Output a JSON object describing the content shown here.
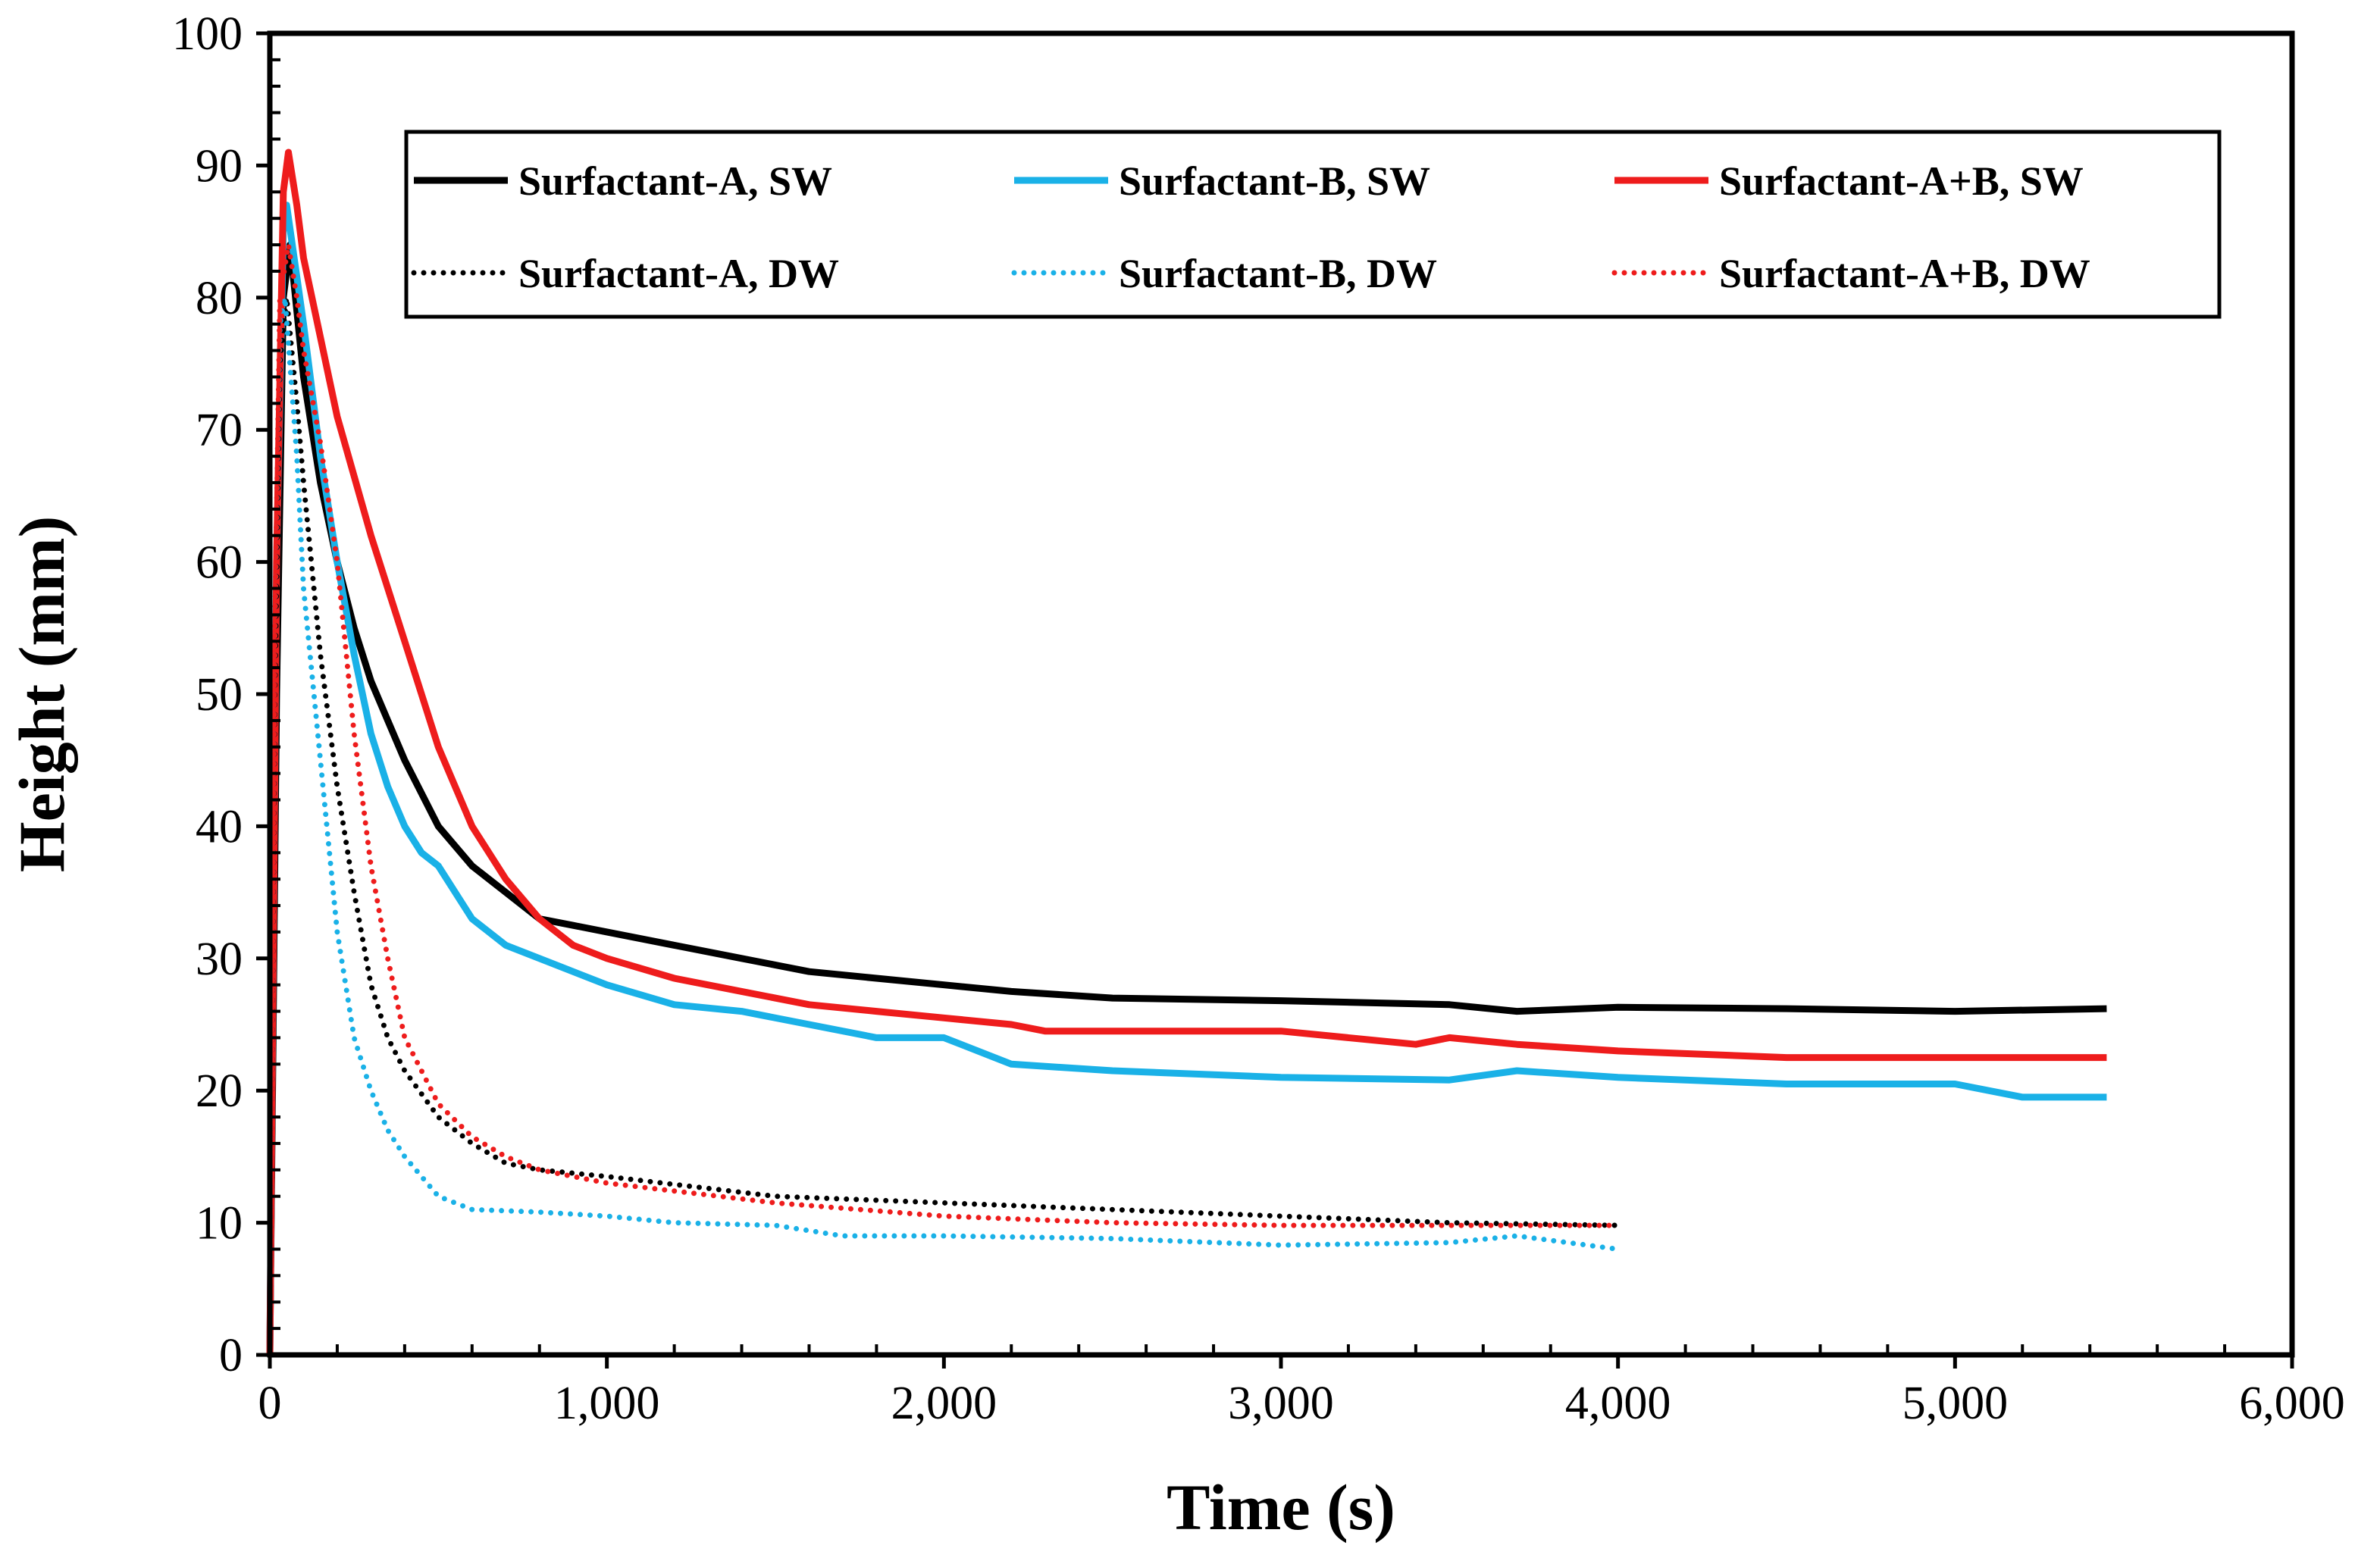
{
  "chart_data": {
    "type": "line",
    "title": "",
    "xlabel": "Time (s)",
    "ylabel": "Height (mm)",
    "xlim": [
      0,
      6000
    ],
    "ylim": [
      0,
      100
    ],
    "x_ticks": [
      0,
      1000,
      2000,
      3000,
      4000,
      5000,
      6000
    ],
    "x_tick_labels": [
      "0",
      "1,000",
      "2,000",
      "3,000",
      "4,000",
      "5,000",
      "6,000"
    ],
    "y_ticks": [
      0,
      10,
      20,
      30,
      40,
      50,
      60,
      70,
      80,
      90,
      100
    ],
    "y_tick_labels": [
      "0",
      "10",
      "20",
      "30",
      "40",
      "50",
      "60",
      "70",
      "80",
      "90",
      "100"
    ],
    "grid": false,
    "legend_position": "top",
    "series": [
      {
        "name": "Surfactant-A, SW",
        "color": "#000000",
        "style": "solid",
        "x": [
          0,
          20,
          40,
          60,
          100,
          150,
          200,
          250,
          300,
          350,
          400,
          500,
          600,
          700,
          800,
          900,
          1000,
          1200,
          1400,
          1600,
          1800,
          2000,
          2200,
          2500,
          3000,
          3500,
          3700,
          4000,
          4500,
          5000,
          5450
        ],
        "y": [
          0,
          50,
          80,
          84,
          74,
          66,
          60,
          55,
          51,
          48,
          45,
          40,
          37,
          35,
          33,
          32.5,
          32,
          31,
          30,
          29,
          28.5,
          28,
          27.5,
          27,
          26.8,
          26.5,
          26,
          26.3,
          26.2,
          26,
          26.2
        ]
      },
      {
        "name": "Surfactant-B, SW",
        "color": "#1ab1e7",
        "style": "solid",
        "x": [
          0,
          20,
          40,
          50,
          100,
          150,
          200,
          250,
          300,
          350,
          400,
          450,
          500,
          600,
          700,
          800,
          1000,
          1200,
          1400,
          1600,
          1800,
          2000,
          2200,
          2500,
          3000,
          3500,
          3700,
          4000,
          4500,
          5000,
          5200,
          5450
        ],
        "y": [
          0,
          60,
          85,
          87,
          78,
          68,
          60,
          53,
          47,
          43,
          40,
          38,
          37,
          33,
          31,
          30,
          28,
          26.5,
          26,
          25,
          24,
          24,
          22,
          21.5,
          21,
          20.8,
          21.5,
          21,
          20.5,
          20.5,
          19.5,
          19.5
        ]
      },
      {
        "name": "Surfactant-A+B, SW",
        "color": "#ee1c1c",
        "style": "solid",
        "x": [
          0,
          20,
          40,
          55,
          80,
          100,
          150,
          200,
          300,
          400,
          500,
          600,
          700,
          800,
          900,
          1000,
          1200,
          1400,
          1600,
          1800,
          2000,
          2200,
          2300,
          2500,
          3000,
          3400,
          3500,
          3700,
          4000,
          4500,
          5000,
          5450
        ],
        "y": [
          0,
          60,
          88,
          91,
          87,
          83,
          77,
          71,
          62,
          54,
          46,
          40,
          36,
          33,
          31,
          30,
          28.5,
          27.5,
          26.5,
          26,
          25.5,
          25,
          24.5,
          24.5,
          24.5,
          23.5,
          24,
          23.5,
          23,
          22.5,
          22.5,
          22.5
        ]
      },
      {
        "name": "Surfactant-A, DW",
        "color": "#000000",
        "style": "dotted",
        "x": [
          0,
          15,
          30,
          50,
          80,
          100,
          150,
          200,
          250,
          300,
          350,
          400,
          500,
          600,
          700,
          800,
          1000,
          1500,
          2000,
          2500,
          3000,
          3500,
          4000
        ],
        "y": [
          0,
          50,
          75,
          80,
          72,
          66,
          53,
          43,
          35,
          28,
          24,
          21.5,
          18,
          16,
          14.5,
          14,
          13.5,
          12,
          11.5,
          11,
          10.5,
          10,
          9.8
        ]
      },
      {
        "name": "Surfactant-B, DW",
        "color": "#1ab1e7",
        "style": "dotted",
        "x": [
          0,
          15,
          30,
          45,
          80,
          100,
          150,
          200,
          250,
          300,
          350,
          400,
          500,
          600,
          800,
          1000,
          1200,
          1500,
          1700,
          2000,
          2500,
          3000,
          3500,
          3700,
          4000
        ],
        "y": [
          0,
          55,
          78,
          80,
          68,
          58,
          45,
          32,
          24,
          20,
          17,
          15,
          12,
          11,
          10.8,
          10.5,
          10,
          9.8,
          9,
          9,
          8.8,
          8.3,
          8.5,
          9,
          8
        ]
      },
      {
        "name": "Surfactant-A+B, DW",
        "color": "#ee1c1c",
        "style": "dotted",
        "x": [
          0,
          15,
          30,
          55,
          80,
          100,
          150,
          200,
          250,
          300,
          350,
          400,
          500,
          600,
          700,
          800,
          1000,
          1500,
          2000,
          2500,
          3000,
          3500,
          4000
        ],
        "y": [
          0,
          55,
          80,
          84,
          80,
          76,
          69,
          60,
          47,
          37,
          30,
          24,
          19,
          16.5,
          15,
          14,
          13,
          11.5,
          10.5,
          10,
          9.8,
          9.8,
          9.8
        ]
      }
    ]
  }
}
